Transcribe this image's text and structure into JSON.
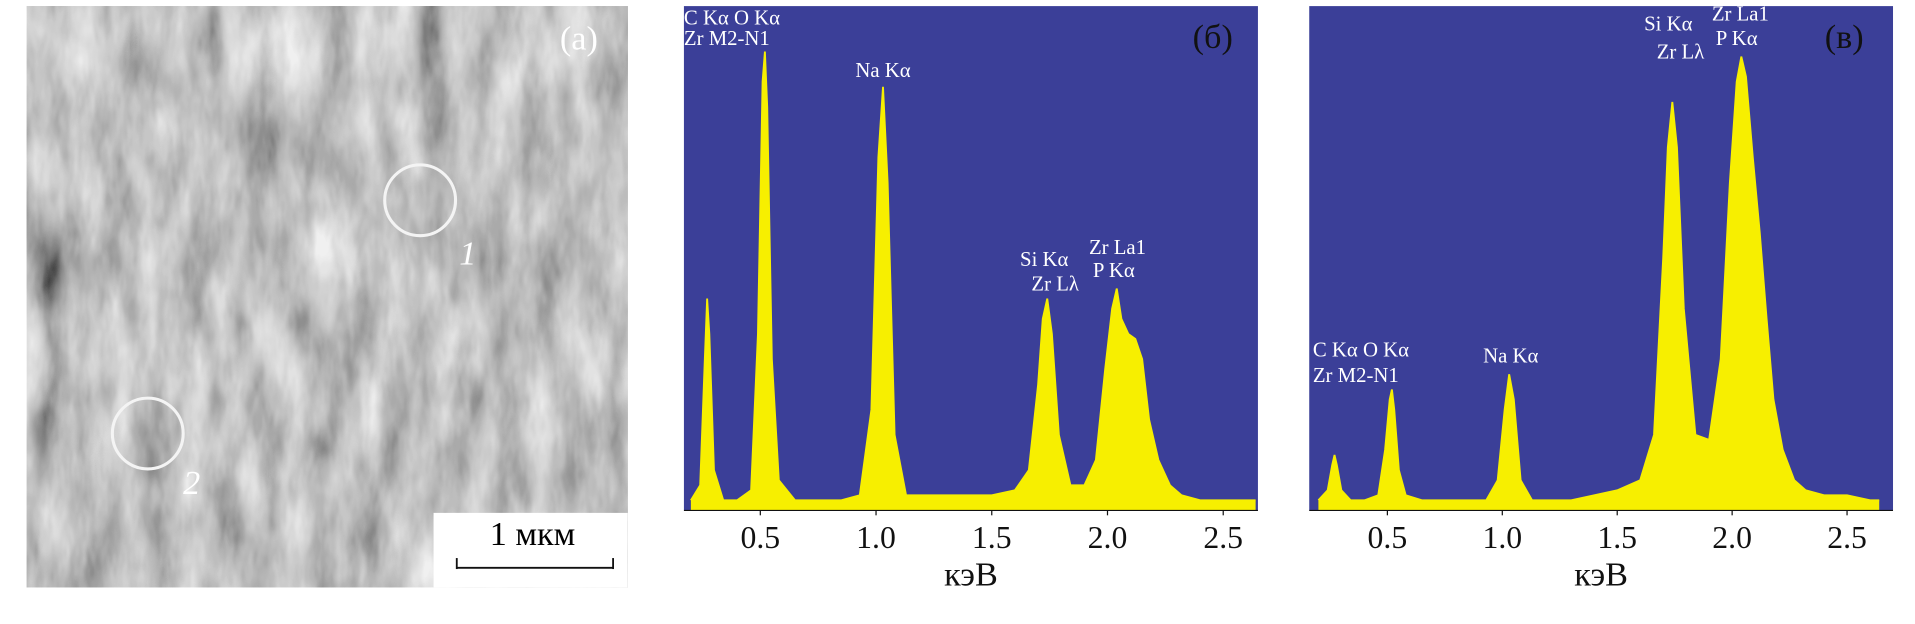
{
  "panel_a": {
    "label": "(а)",
    "region_labels": [
      "1",
      "2"
    ],
    "scale_bar": "1 мкм"
  },
  "chart_data": [
    {
      "type": "area",
      "panel_label": "(б)",
      "x_label": "кэВ",
      "color": "#f7ef00",
      "background": "#3b3f98",
      "x": [
        0.2,
        0.24,
        0.26,
        0.27,
        0.28,
        0.3,
        0.34,
        0.4,
        0.46,
        0.49,
        0.51,
        0.52,
        0.53,
        0.55,
        0.58,
        0.65,
        0.75,
        0.85,
        0.93,
        0.98,
        1.01,
        1.03,
        1.05,
        1.08,
        1.13,
        1.2,
        1.3,
        1.4,
        1.5,
        1.6,
        1.66,
        1.7,
        1.72,
        1.74,
        1.76,
        1.79,
        1.84,
        1.9,
        1.95,
        1.99,
        2.02,
        2.04,
        2.06,
        2.09,
        2.12,
        2.15,
        2.18,
        2.22,
        2.27,
        2.32,
        2.4,
        2.5,
        2.6,
        2.64
      ],
      "values": [
        2,
        5,
        30,
        42,
        35,
        8,
        2,
        2,
        4,
        35,
        85,
        91,
        80,
        30,
        6,
        2,
        2,
        2,
        3,
        20,
        70,
        84,
        65,
        15,
        3,
        3,
        3,
        3,
        3,
        4,
        8,
        25,
        38,
        42,
        35,
        15,
        5,
        5,
        10,
        28,
        40,
        44,
        38,
        35,
        34,
        30,
        18,
        10,
        5,
        3,
        2,
        2,
        2,
        2
      ],
      "xlim": [
        0.17,
        2.65
      ],
      "ylim": [
        0,
        100
      ],
      "xticks": [
        0.5,
        {
          "value": 1,
          "label": "1.0"
        },
        1.5,
        {
          "value": 2,
          "label": "2.0"
        },
        2.5
      ],
      "annotations": [
        "C Kα O Kα",
        "Zr M2-N1",
        "Na Kα",
        "Si Kα",
        "Zr Lλ",
        "Zr La1",
        "P Kα"
      ]
    },
    {
      "type": "area",
      "panel_label": "(в)",
      "x_label": "кэВ",
      "color": "#f7ef00",
      "background": "#3b3f98",
      "x": [
        0.2,
        0.24,
        0.26,
        0.27,
        0.28,
        0.3,
        0.34,
        0.4,
        0.46,
        0.49,
        0.51,
        0.52,
        0.53,
        0.55,
        0.58,
        0.65,
        0.75,
        0.85,
        0.93,
        0.98,
        1.01,
        1.03,
        1.05,
        1.08,
        1.13,
        1.2,
        1.3,
        1.4,
        1.5,
        1.6,
        1.66,
        1.7,
        1.72,
        1.74,
        1.76,
        1.79,
        1.84,
        1.9,
        1.95,
        1.99,
        2.02,
        2.04,
        2.06,
        2.09,
        2.12,
        2.15,
        2.18,
        2.22,
        2.27,
        2.32,
        2.4,
        2.5,
        2.6,
        2.64
      ],
      "values": [
        2,
        4,
        9,
        11,
        9,
        4,
        2,
        2,
        3,
        12,
        22,
        24,
        20,
        8,
        3,
        2,
        2,
        2,
        2,
        6,
        20,
        27,
        22,
        6,
        2,
        2,
        2,
        3,
        4,
        6,
        15,
        50,
        72,
        81,
        72,
        40,
        15,
        14,
        30,
        65,
        85,
        90,
        86,
        70,
        55,
        38,
        22,
        12,
        6,
        4,
        3,
        3,
        2,
        2
      ],
      "xlim": [
        0.16,
        2.7
      ],
      "ylim": [
        0,
        100
      ],
      "xticks": [
        0.5,
        {
          "value": 1,
          "label": "1.0"
        },
        1.5,
        {
          "value": 2,
          "label": "2.0"
        },
        2.5
      ],
      "annotations": [
        "C Kα O Kα",
        "Zr M2-N1",
        "Na Kα",
        "Si Kα",
        "Zr Lλ",
        "Zr La1",
        "P Kα"
      ]
    }
  ]
}
